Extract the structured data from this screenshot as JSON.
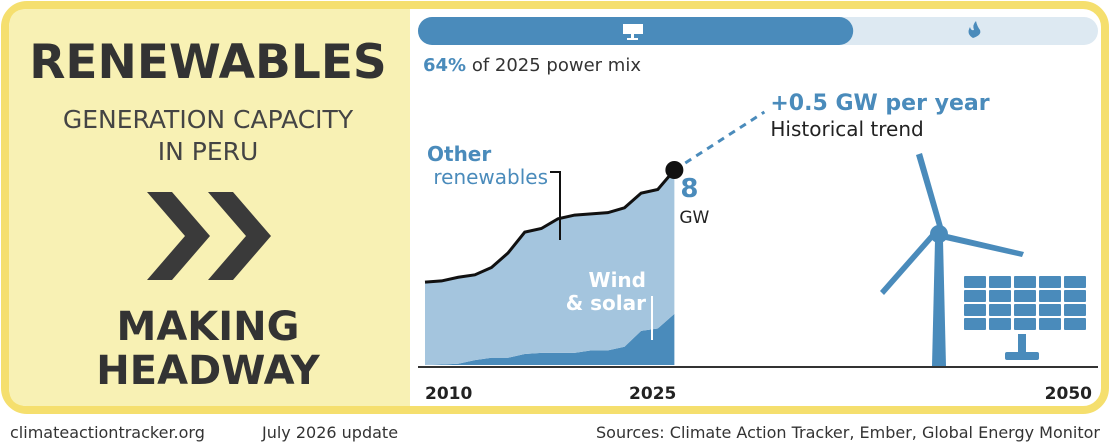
{
  "header": {
    "title": "RENEWABLES",
    "subtitle_lines": [
      "GENERATION CAPACITY",
      "IN PERU"
    ],
    "rating_lines": [
      "MAKING",
      "HEADWAY"
    ]
  },
  "power_mix": {
    "share": 64,
    "share_label": "64%",
    "text": "of 2025 power mix"
  },
  "chart_data": {
    "type": "stacked-area",
    "x": [
      2010,
      2011,
      2012,
      2013,
      2014,
      2015,
      2016,
      2017,
      2018,
      2019,
      2020,
      2021,
      2022,
      2023,
      2024,
      2025
    ],
    "series": [
      {
        "name": "Wind & solar",
        "color": "#4a8bbb",
        "values": [
          0.0,
          0.02,
          0.05,
          0.2,
          0.3,
          0.3,
          0.45,
          0.5,
          0.5,
          0.5,
          0.6,
          0.6,
          0.75,
          1.4,
          1.5,
          2.1
        ]
      },
      {
        "name": "Other renewables",
        "color": "#a4c5de",
        "values": [
          3.4,
          3.43,
          3.55,
          3.5,
          3.7,
          4.3,
          5.0,
          5.1,
          5.5,
          5.65,
          5.6,
          5.65,
          5.7,
          5.65,
          5.7,
          5.9
        ]
      }
    ],
    "xlim": [
      2010,
      2050
    ],
    "xticks": [
      2010,
      2025,
      2050
    ],
    "end_value": 8,
    "end_unit": "GW",
    "trend_rate": "+0.5 GW per year",
    "trend_label": "Historical trend"
  },
  "footer": {
    "site": "climateactiontracker.org",
    "update": "July 2026 update",
    "sources": "Sources: Climate Action Tracker, Ember, Global Energy Monitor"
  }
}
